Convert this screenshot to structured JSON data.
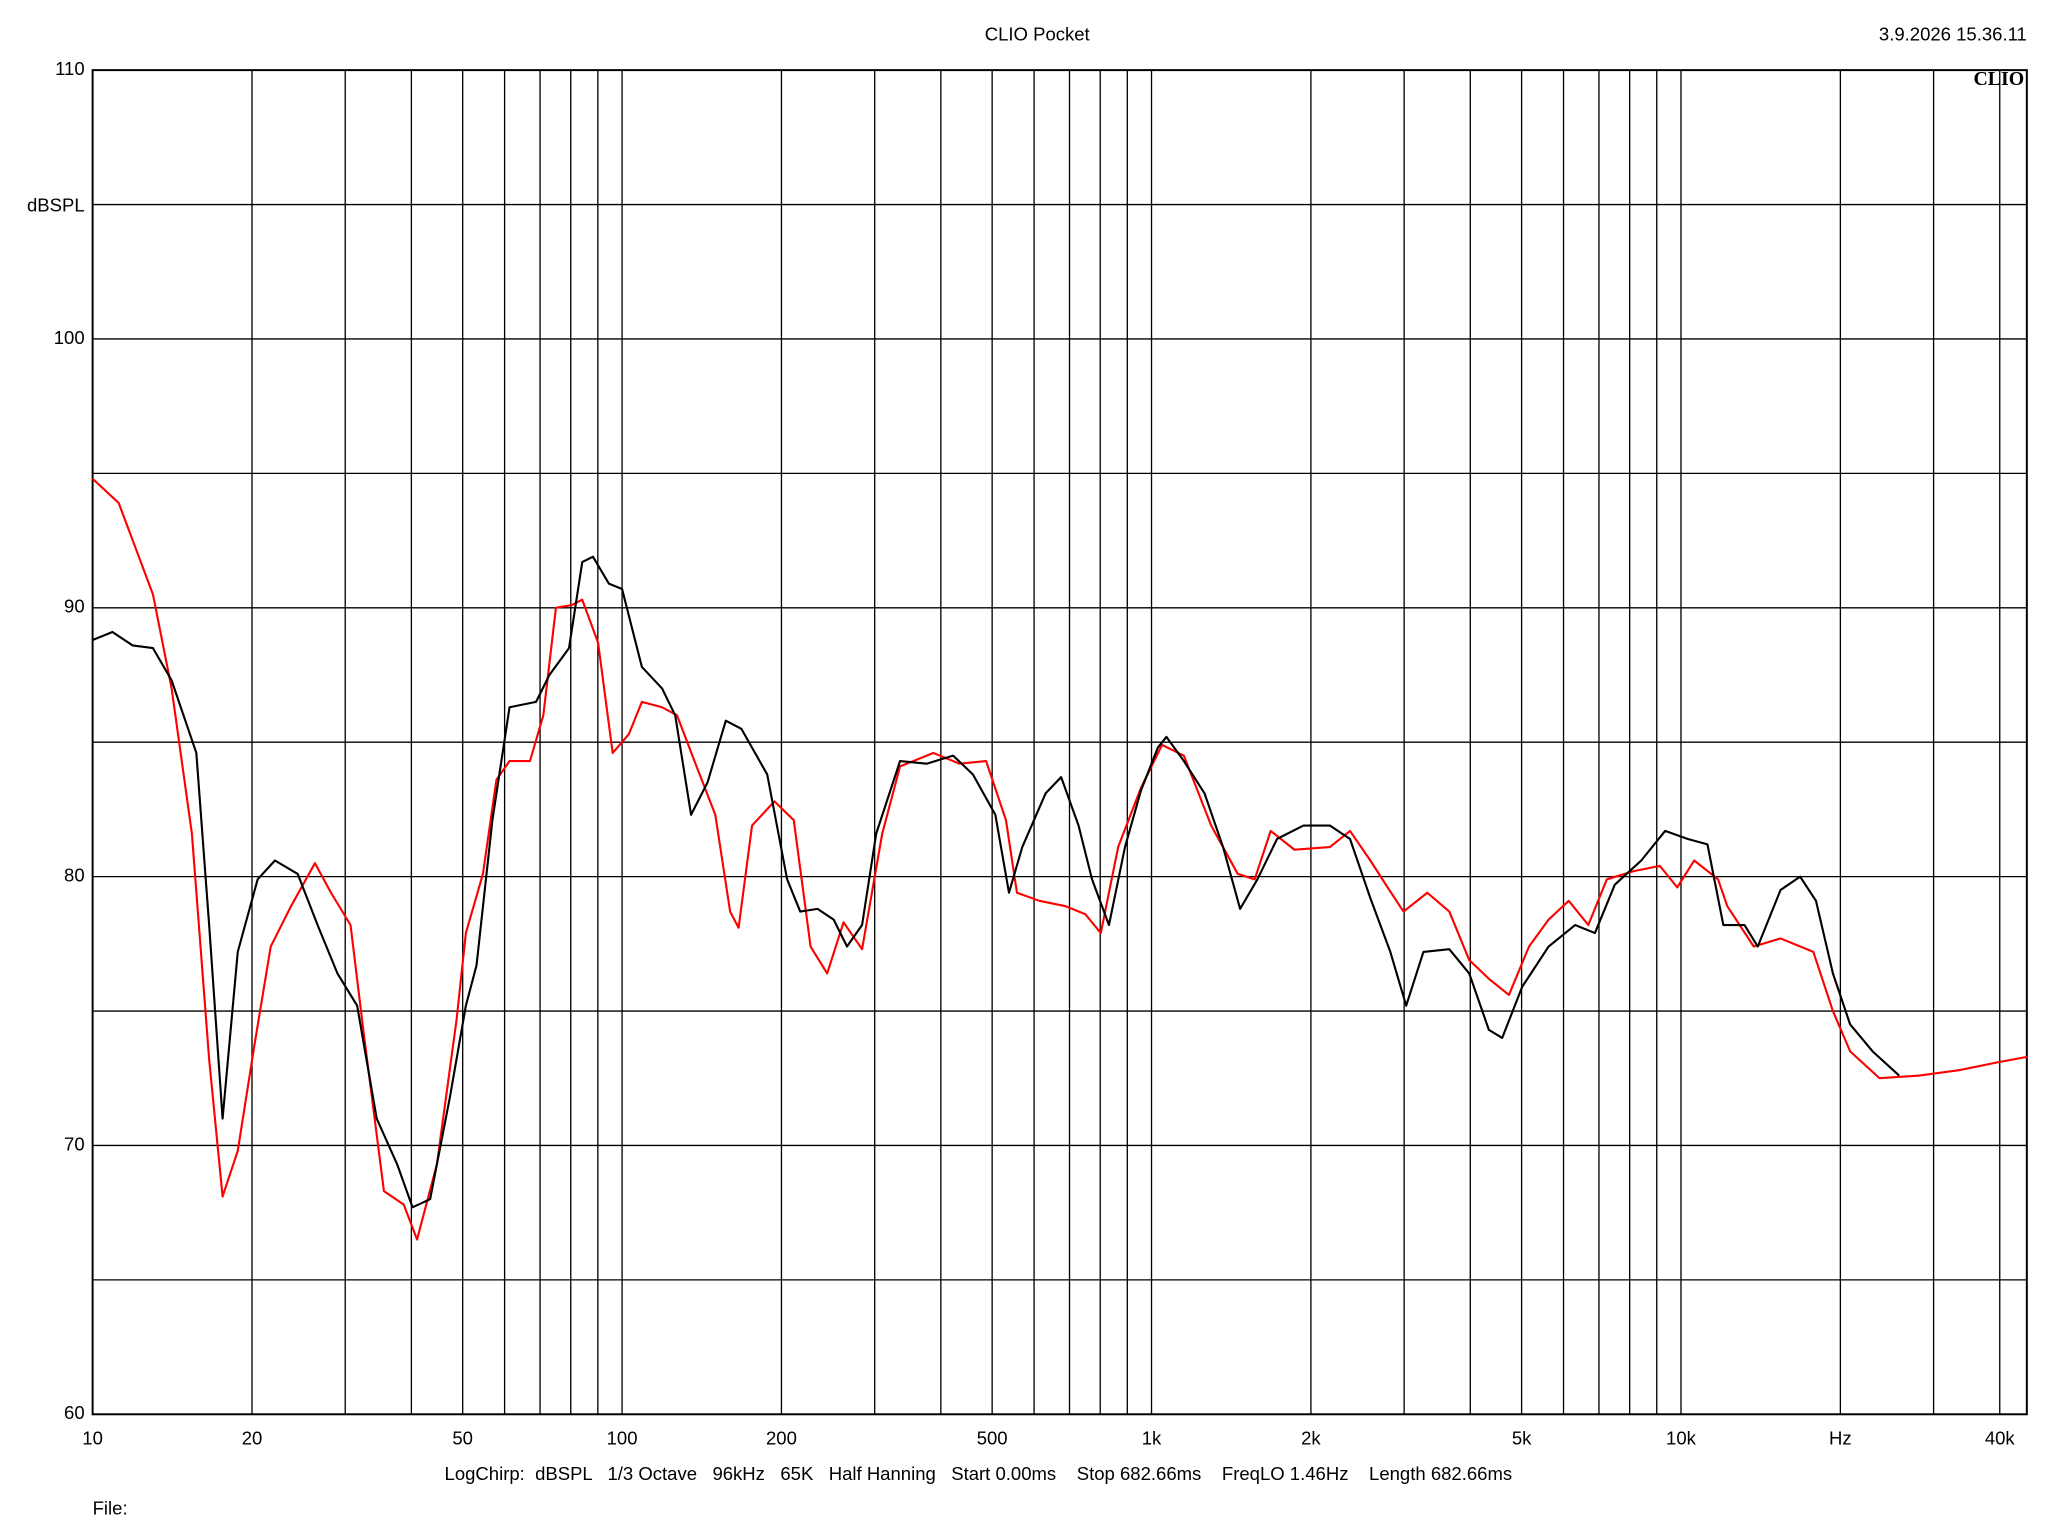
{
  "chart_data": {
    "type": "line",
    "title": "CLIO Pocket",
    "timestamp": "3.9.2026 15.36.11",
    "logo": "CLIO",
    "y_label": "dBSPL",
    "footer": "LogChirp:  dBSPL   1/3 Octave   96kHz   65K   Half Hanning   Start 0.00ms    Stop 682.66ms    FreqLO 1.46Hz    Length 682.66ms",
    "file_label": "File:",
    "x_log": true,
    "grid": true,
    "xlim": [
      10,
      45000
    ],
    "ylim": [
      60,
      110
    ],
    "xticks": [
      10,
      20,
      50,
      100,
      200,
      500,
      {
        "value": 1000,
        "label": "1k"
      },
      {
        "value": 2000,
        "label": "2k"
      },
      {
        "value": 5000,
        "label": "5k"
      },
      {
        "value": 10000,
        "label": "10k"
      },
      {
        "value": 20000,
        "label": "Hz"
      },
      {
        "value": 40000,
        "label": "40k"
      }
    ],
    "xgrid": [
      30,
      40,
      60,
      70,
      80,
      90,
      300,
      400,
      600,
      700,
      800,
      900,
      3000,
      4000,
      6000,
      7000,
      8000,
      9000,
      30000
    ],
    "yticks": [
      60,
      70,
      80,
      90,
      100,
      110
    ],
    "ygrid": [
      65,
      75,
      85,
      95,
      105
    ],
    "series": [
      {
        "name": "Black trace",
        "color": "#000000",
        "x": [
          10,
          10.9,
          11.9,
          13.0,
          14.1,
          15.7,
          16.6,
          17.6,
          18.8,
          20.5,
          22.1,
          24.4,
          26.6,
          29.0,
          31.6,
          34.4,
          37.6,
          40.2,
          43.4,
          47.3,
          50.7,
          53.1,
          56.9,
          61.3,
          68.8,
          72.9,
          79.4,
          84.1,
          88.1,
          94.4,
          100,
          109,
          119,
          126,
          135,
          145,
          157,
          168,
          188,
          205,
          217,
          234,
          251,
          266,
          284,
          302,
          335,
          376,
          422,
          460,
          507,
          538,
          570,
          631,
          675,
          728,
          772,
          831,
          891,
          955,
          1028,
          1067,
          1151,
          1259,
          1365,
          1470,
          1585,
          1726,
          1936,
          2172,
          2371,
          2590,
          2825,
          3027,
          3262,
          3651,
          3981,
          4337,
          4596,
          5012,
          5623,
          6310,
          6878,
          7499,
          8414,
          9333,
          10304,
          11220,
          12023,
          13183,
          13964,
          15417,
          16788,
          17987,
          19362,
          20870,
          23010,
          25823
        ],
        "values": [
          88.8,
          89.1,
          88.6,
          88.5,
          87.3,
          84.6,
          78.2,
          71.0,
          77.2,
          79.9,
          80.6,
          80.1,
          78.2,
          76.4,
          75.2,
          71.0,
          69.3,
          67.7,
          68.0,
          71.8,
          75.2,
          76.7,
          82.1,
          86.3,
          86.5,
          87.5,
          88.5,
          91.7,
          91.9,
          90.9,
          90.7,
          87.8,
          87.0,
          86.0,
          82.3,
          83.5,
          85.8,
          85.5,
          83.8,
          79.9,
          78.7,
          78.8,
          78.4,
          77.4,
          78.2,
          81.6,
          84.3,
          84.2,
          84.5,
          83.8,
          82.3,
          79.4,
          81.1,
          83.1,
          83.7,
          81.9,
          79.9,
          78.2,
          81.1,
          83.2,
          84.8,
          85.2,
          84.3,
          83.1,
          81.1,
          78.8,
          79.9,
          81.4,
          81.9,
          81.9,
          81.4,
          79.2,
          77.2,
          75.2,
          77.2,
          77.3,
          76.4,
          74.3,
          74.0,
          75.9,
          77.4,
          78.2,
          77.9,
          79.7,
          80.6,
          81.7,
          81.4,
          81.2,
          78.2,
          78.2,
          77.4,
          79.5,
          80.0,
          79.1,
          76.4,
          74.5,
          73.5,
          72.6
        ]
      },
      {
        "name": "Red trace",
        "color": "#ff0000",
        "x": [
          10,
          11.2,
          13.0,
          14.1,
          15.4,
          16.6,
          17.6,
          18.8,
          20.2,
          21.7,
          23.7,
          26.3,
          28.2,
          30.7,
          32.5,
          35.5,
          38.7,
          41.0,
          44.7,
          48.7,
          50.7,
          54.6,
          57.9,
          61.3,
          67.0,
          71.0,
          75.0,
          80.4,
          84.1,
          90.1,
          96.0,
          103,
          109,
          119,
          127,
          137,
          150,
          160,
          166,
          176,
          194,
          211,
          227,
          244,
          262,
          284,
          310,
          335,
          387,
          434,
          487,
          531,
          557,
          614,
          688,
          750,
          802,
          865,
          955,
          1047,
          1151,
          1296,
          1455,
          1566,
          1679,
          1862,
          2172,
          2371,
          2590,
          2792,
          2992,
          3318,
          3651,
          3981,
          4337,
          4732,
          5164,
          5623,
          6138,
          6683,
          7244,
          8128,
          9120,
          9840,
          10593,
          11749,
          12232,
          13722,
          15417,
          17783,
          19362,
          20870,
          23714,
          28183,
          33497,
          39811,
          45180
        ],
        "values": [
          94.8,
          93.9,
          90.5,
          87.0,
          81.6,
          73.2,
          68.1,
          69.8,
          73.7,
          77.4,
          78.9,
          80.5,
          79.4,
          78.2,
          74.2,
          68.3,
          67.8,
          66.5,
          69.3,
          74.7,
          77.9,
          80.1,
          83.6,
          84.3,
          84.3,
          86.0,
          90.0,
          90.1,
          90.3,
          88.7,
          84.6,
          85.3,
          86.5,
          86.3,
          86.0,
          84.3,
          82.3,
          78.7,
          78.1,
          81.9,
          82.8,
          82.1,
          77.4,
          76.4,
          78.3,
          77.3,
          81.6,
          84.1,
          84.6,
          84.2,
          84.3,
          82.1,
          79.4,
          79.1,
          78.9,
          78.6,
          77.9,
          81.1,
          83.3,
          84.9,
          84.5,
          81.9,
          80.1,
          79.9,
          81.7,
          81.0,
          81.1,
          81.7,
          80.6,
          79.6,
          78.7,
          79.4,
          78.7,
          76.9,
          76.2,
          75.6,
          77.4,
          78.4,
          79.1,
          78.2,
          79.9,
          80.2,
          80.4,
          79.6,
          80.6,
          79.9,
          78.9,
          77.4,
          77.7,
          77.2,
          75.0,
          73.5,
          72.5,
          72.6,
          72.8,
          73.1,
          73.3
        ]
      }
    ]
  }
}
